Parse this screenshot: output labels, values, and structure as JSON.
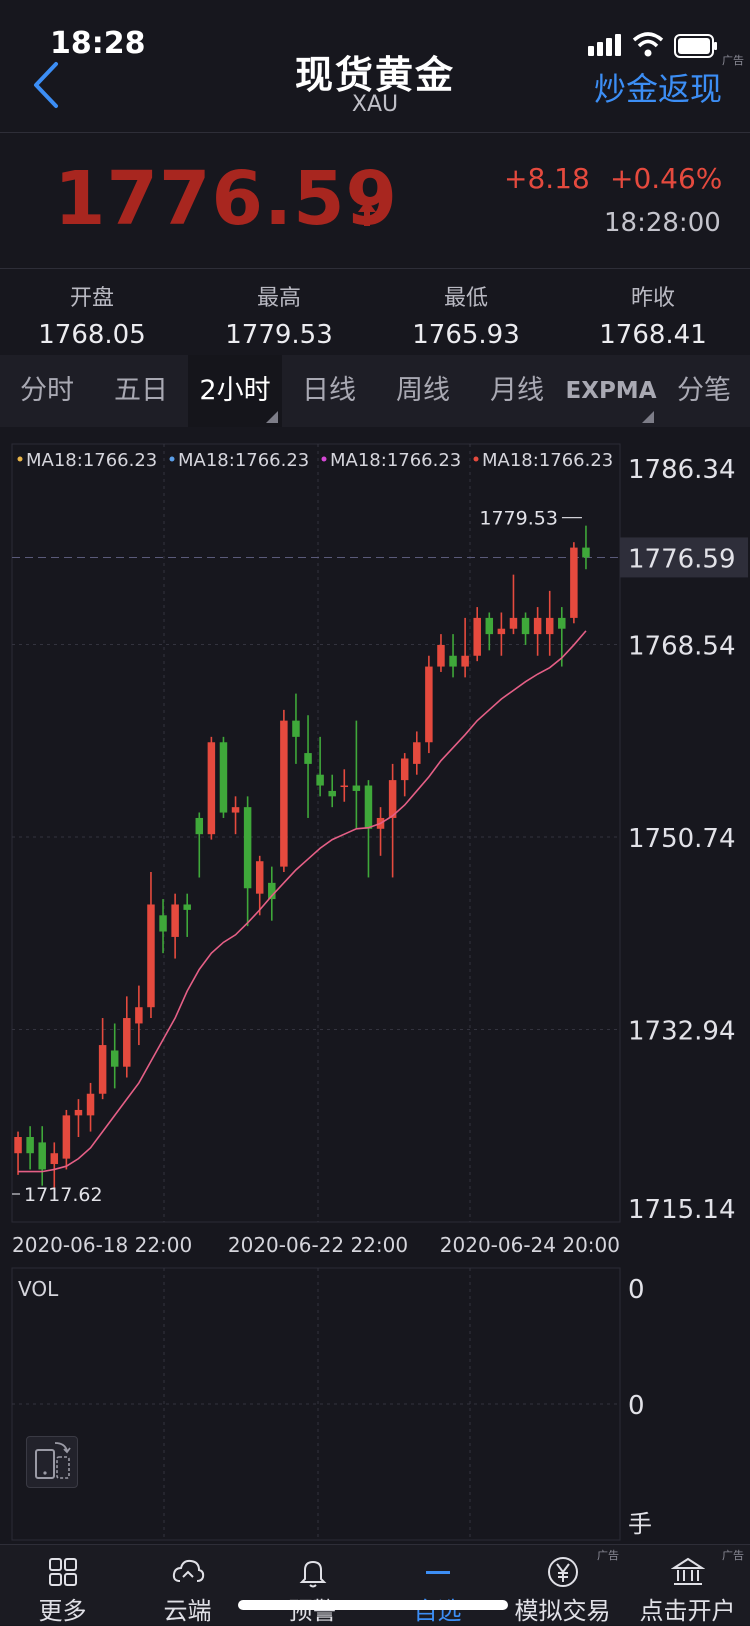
{
  "status_bar": {
    "time": "18:28"
  },
  "header": {
    "title": "现货黄金",
    "subtitle": "XAU",
    "promo_link": "炒金返现",
    "ad_tag": "广告"
  },
  "quote": {
    "price": "1776.59",
    "change": "+8.18",
    "change_pct": "+0.46%",
    "time": "18:28:00",
    "up_color": "#e54a3e",
    "down_color": "#3fa83a"
  },
  "stats": [
    {
      "label": "开盘",
      "value": "1768.05"
    },
    {
      "label": "最高",
      "value": "1779.53"
    },
    {
      "label": "最低",
      "value": "1765.93"
    },
    {
      "label": "昨收",
      "value": "1768.41"
    }
  ],
  "tabs": [
    {
      "label": "分时",
      "active": false,
      "menu": false
    },
    {
      "label": "五日",
      "active": false,
      "menu": false
    },
    {
      "label": "2小时",
      "active": true,
      "menu": true
    },
    {
      "label": "日线",
      "active": false,
      "menu": false
    },
    {
      "label": "周线",
      "active": false,
      "menu": false
    },
    {
      "label": "月线",
      "active": false,
      "menu": false
    },
    {
      "label": "EXPMA",
      "active": false,
      "menu": true
    },
    {
      "label": "分笔",
      "active": false,
      "menu": false
    }
  ],
  "chart_data": {
    "type": "candlestick",
    "legend": [
      {
        "text": "MA18:1766.23",
        "color": "#e8b44a"
      },
      {
        "text": "MA18:1766.23",
        "color": "#5a9ee8"
      },
      {
        "text": "MA18:1766.23",
        "color": "#d447d4"
      },
      {
        "text": "MA18:1766.23",
        "color": "#e54a3e"
      }
    ],
    "y_ticks": [
      "1786.34",
      "1768.54",
      "1750.74",
      "1732.94",
      "1715.14"
    ],
    "ylim": [
      1715.14,
      1786.34
    ],
    "current_price": "1776.59",
    "max_label": "1779.53",
    "min_label": "1717.62",
    "x_ticks": [
      "2020-06-18 22:00",
      "2020-06-22 22:00",
      "2020-06-24 20:00"
    ],
    "candles": [
      {
        "o": 1721.5,
        "h": 1723.5,
        "l": 1719.5,
        "c": 1723.0
      },
      {
        "o": 1723.0,
        "h": 1724.0,
        "l": 1720.0,
        "c": 1721.5
      },
      {
        "o": 1722.5,
        "h": 1724.0,
        "l": 1718.5,
        "c": 1720.0
      },
      {
        "o": 1720.5,
        "h": 1722.5,
        "l": 1718.0,
        "c": 1721.5
      },
      {
        "o": 1721.0,
        "h": 1725.5,
        "l": 1720.0,
        "c": 1725.0
      },
      {
        "o": 1725.0,
        "h": 1726.5,
        "l": 1723.0,
        "c": 1725.5
      },
      {
        "o": 1725.0,
        "h": 1728.0,
        "l": 1723.5,
        "c": 1727.0
      },
      {
        "o": 1727.0,
        "h": 1734.0,
        "l": 1726.5,
        "c": 1731.5
      },
      {
        "o": 1731.0,
        "h": 1733.5,
        "l": 1727.5,
        "c": 1729.5
      },
      {
        "o": 1729.5,
        "h": 1736.0,
        "l": 1728.5,
        "c": 1734.0
      },
      {
        "o": 1733.5,
        "h": 1737.0,
        "l": 1731.5,
        "c": 1735.0
      },
      {
        "o": 1735.0,
        "h": 1747.5,
        "l": 1734.0,
        "c": 1744.5
      },
      {
        "o": 1743.5,
        "h": 1745.0,
        "l": 1740.0,
        "c": 1742.0
      },
      {
        "o": 1741.5,
        "h": 1745.5,
        "l": 1739.5,
        "c": 1744.5
      },
      {
        "o": 1744.5,
        "h": 1745.5,
        "l": 1741.5,
        "c": 1744.0
      },
      {
        "o": 1752.5,
        "h": 1753.0,
        "l": 1747.0,
        "c": 1751.0
      },
      {
        "o": 1751.0,
        "h": 1760.0,
        "l": 1750.5,
        "c": 1759.5
      },
      {
        "o": 1759.5,
        "h": 1760.0,
        "l": 1752.5,
        "c": 1753.0
      },
      {
        "o": 1753.0,
        "h": 1754.5,
        "l": 1751.0,
        "c": 1753.5
      },
      {
        "o": 1753.5,
        "h": 1754.5,
        "l": 1742.5,
        "c": 1746.0
      },
      {
        "o": 1745.5,
        "h": 1749.0,
        "l": 1743.5,
        "c": 1748.5
      },
      {
        "o": 1746.5,
        "h": 1748.0,
        "l": 1743.0,
        "c": 1745.0
      },
      {
        "o": 1748.0,
        "h": 1762.5,
        "l": 1747.5,
        "c": 1761.5
      },
      {
        "o": 1761.5,
        "h": 1764.0,
        "l": 1757.5,
        "c": 1760.0
      },
      {
        "o": 1758.5,
        "h": 1762.0,
        "l": 1752.5,
        "c": 1757.5
      },
      {
        "o": 1756.5,
        "h": 1760.0,
        "l": 1754.5,
        "c": 1755.5
      },
      {
        "o": 1755.0,
        "h": 1756.5,
        "l": 1753.5,
        "c": 1754.5
      },
      {
        "o": 1755.5,
        "h": 1757.0,
        "l": 1754.0,
        "c": 1755.5
      },
      {
        "o": 1755.5,
        "h": 1761.5,
        "l": 1751.5,
        "c": 1755.0
      },
      {
        "o": 1755.5,
        "h": 1756.0,
        "l": 1747.0,
        "c": 1751.5
      },
      {
        "o": 1751.5,
        "h": 1753.5,
        "l": 1749.0,
        "c": 1752.5
      },
      {
        "o": 1752.5,
        "h": 1757.5,
        "l": 1747.0,
        "c": 1756.0
      },
      {
        "o": 1756.0,
        "h": 1758.5,
        "l": 1754.5,
        "c": 1758.0
      },
      {
        "o": 1757.5,
        "h": 1760.5,
        "l": 1756.5,
        "c": 1759.5
      },
      {
        "o": 1759.5,
        "h": 1767.5,
        "l": 1758.5,
        "c": 1766.5
      },
      {
        "o": 1766.5,
        "h": 1769.5,
        "l": 1766.0,
        "c": 1768.5
      },
      {
        "o": 1767.5,
        "h": 1769.5,
        "l": 1765.5,
        "c": 1766.5
      },
      {
        "o": 1766.5,
        "h": 1771.0,
        "l": 1765.5,
        "c": 1767.5
      },
      {
        "o": 1767.5,
        "h": 1772.0,
        "l": 1767.0,
        "c": 1771.0
      },
      {
        "o": 1771.0,
        "h": 1771.5,
        "l": 1768.0,
        "c": 1769.5
      },
      {
        "o": 1769.5,
        "h": 1771.5,
        "l": 1767.5,
        "c": 1770.0
      },
      {
        "o": 1770.0,
        "h": 1775.0,
        "l": 1769.5,
        "c": 1771.0
      },
      {
        "o": 1771.0,
        "h": 1771.5,
        "l": 1768.5,
        "c": 1769.5
      },
      {
        "o": 1769.5,
        "h": 1772.0,
        "l": 1767.5,
        "c": 1771.0
      },
      {
        "o": 1769.5,
        "h": 1773.5,
        "l": 1767.5,
        "c": 1771.0
      },
      {
        "o": 1771.0,
        "h": 1772.0,
        "l": 1766.5,
        "c": 1770.0
      },
      {
        "o": 1771.0,
        "h": 1778.0,
        "l": 1770.5,
        "c": 1777.5
      },
      {
        "o": 1777.5,
        "h": 1779.53,
        "l": 1775.5,
        "c": 1776.59
      }
    ],
    "ma_line": [
      1719.8,
      1719.8,
      1719.8,
      1720.0,
      1720.3,
      1721.0,
      1722.0,
      1723.5,
      1725.0,
      1726.5,
      1728.0,
      1730.0,
      1732.0,
      1734.0,
      1736.5,
      1738.5,
      1740.0,
      1741.0,
      1741.7,
      1742.8,
      1744.0,
      1745.3,
      1746.5,
      1747.7,
      1748.7,
      1749.7,
      1750.5,
      1751.0,
      1751.5,
      1751.6,
      1752.0,
      1752.7,
      1753.7,
      1755.0,
      1756.3,
      1757.8,
      1759.0,
      1760.2,
      1761.5,
      1762.5,
      1763.5,
      1764.3,
      1765.1,
      1765.8,
      1766.4,
      1767.3,
      1768.5,
      1769.8
    ]
  },
  "volume": {
    "label": "VOL",
    "y_ticks": [
      "0",
      "0"
    ],
    "unit": "手"
  },
  "bottom_nav": [
    {
      "label": "更多",
      "icon": "grid-icon",
      "active": false,
      "ad": ""
    },
    {
      "label": "云端",
      "icon": "cloud-sync-icon",
      "active": false,
      "ad": ""
    },
    {
      "label": "预警",
      "icon": "bell-icon",
      "active": false,
      "ad": ""
    },
    {
      "label": "自选",
      "icon": "minus-icon",
      "active": true,
      "ad": ""
    },
    {
      "label": "模拟交易",
      "icon": "yen-coin-icon",
      "active": false,
      "ad": "广告"
    },
    {
      "label": "点击开户",
      "icon": "bank-icon",
      "active": false,
      "ad": "广告"
    }
  ]
}
